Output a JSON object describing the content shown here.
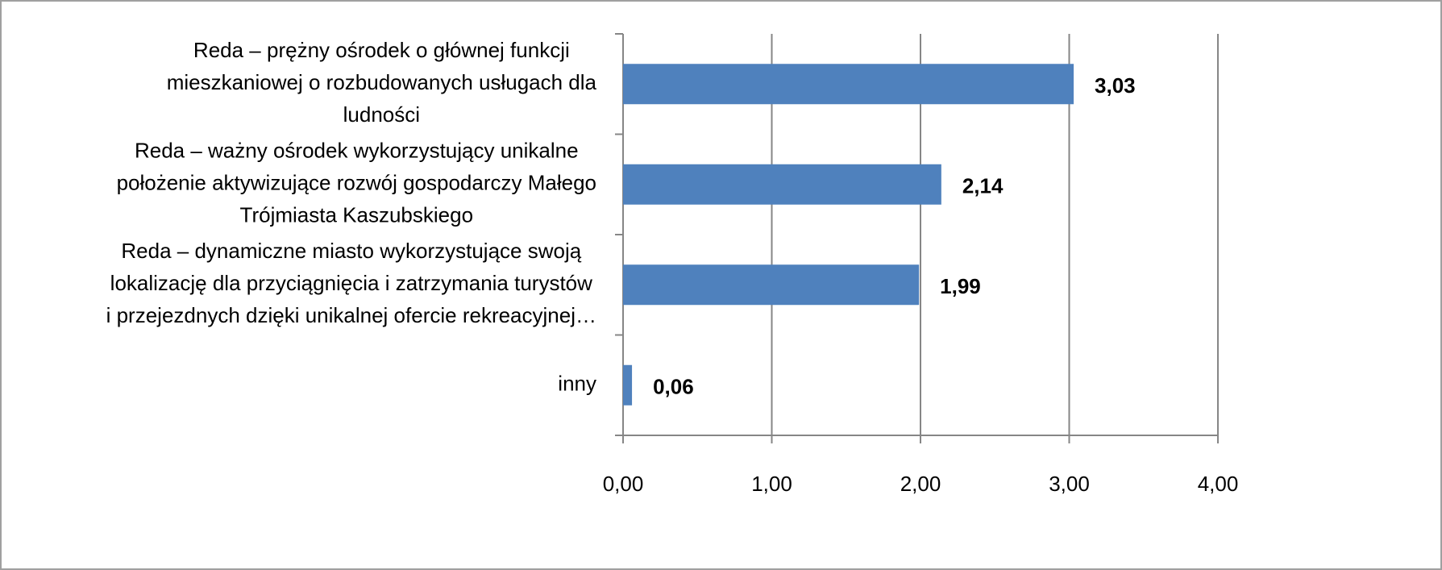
{
  "chart_data": {
    "type": "bar",
    "orientation": "horizontal",
    "categories": [
      [
        "Reda – prężny ośrodek o głównej funkcji",
        "mieszkaniowej o rozbudowanych usługach dla",
        "ludności"
      ],
      [
        "Reda – ważny ośrodek wykorzystujący unikalne",
        "położenie aktywizujące  rozwój gospodarczy Małego",
        "Trójmiasta  Kaszubskiego"
      ],
      [
        "Reda – dynamiczne miasto wykorzystujące  swoją",
        "lokalizację dla przyciągnięcia i zatrzymania  turystów",
        "i przejezdnych dzięki unikalnej ofercie rekreacyjnej…"
      ],
      [
        "inny"
      ]
    ],
    "values": [
      3.03,
      2.14,
      1.99,
      0.06
    ],
    "value_labels": [
      "3,03",
      "2,14",
      "1,99",
      "0,06"
    ],
    "color": "#4f81bd",
    "xlim": [
      0,
      4
    ],
    "xticks": [
      {
        "value": 0,
        "label": "0,00"
      },
      {
        "value": 1,
        "label": "1,00"
      },
      {
        "value": 2,
        "label": "2,00"
      },
      {
        "value": 3,
        "label": "3,00"
      },
      {
        "value": 4,
        "label": "4,00"
      }
    ],
    "grid": true
  }
}
